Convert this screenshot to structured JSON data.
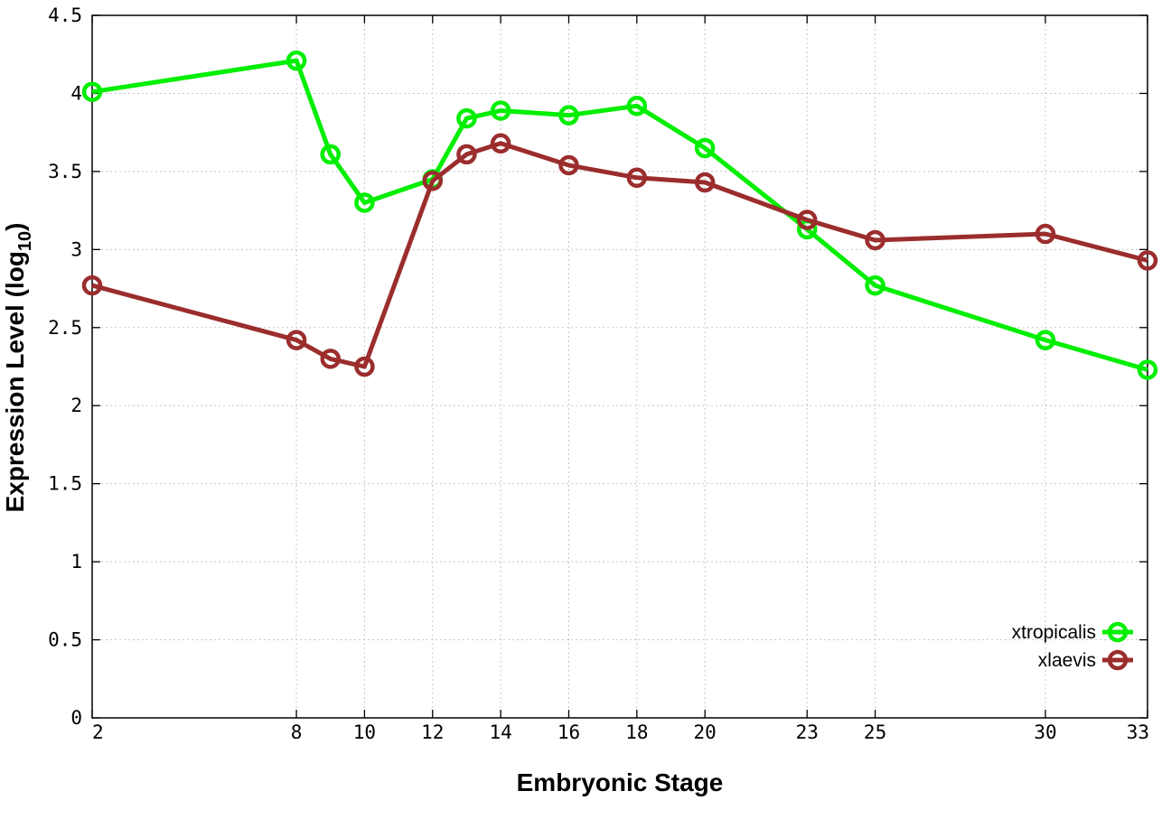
{
  "chart_data": {
    "type": "line",
    "xlabel": "Embryonic Stage",
    "ylabel_main": "Expression Level (log",
    "ylabel_sub": "10",
    "ylabel_close": ")",
    "x_ticks": [
      "2",
      "8",
      "10",
      "12",
      "14",
      "16",
      "18",
      "20",
      "23",
      "25",
      "30",
      "33"
    ],
    "x_tick_values": [
      2,
      8,
      10,
      12,
      14,
      16,
      18,
      20,
      23,
      25,
      30,
      33
    ],
    "y_ticks": [
      "0",
      "0.5",
      "1",
      "1.5",
      "2",
      "2.5",
      "3",
      "3.5",
      "4",
      "4.5"
    ],
    "xlim": [
      2,
      33
    ],
    "ylim": [
      0,
      4.5
    ],
    "grid": true,
    "legend_position": "bottom-right",
    "series": [
      {
        "name": "xtropicalis",
        "color": "#00ee00",
        "x": [
          2,
          8,
          9,
          10,
          12,
          13,
          14,
          16,
          18,
          20,
          23,
          25,
          30,
          33
        ],
        "y": [
          4.01,
          4.21,
          3.61,
          3.3,
          3.45,
          3.84,
          3.89,
          3.86,
          3.92,
          3.65,
          3.13,
          2.77,
          2.42,
          2.23
        ]
      },
      {
        "name": "xlaevis",
        "color": "#9b2d2d",
        "x": [
          2,
          8,
          9,
          10,
          12,
          13,
          14,
          16,
          18,
          20,
          23,
          25,
          30,
          33
        ],
        "y": [
          2.77,
          2.42,
          2.3,
          2.25,
          3.44,
          3.61,
          3.68,
          3.54,
          3.46,
          3.43,
          3.19,
          3.06,
          3.1,
          2.93
        ]
      }
    ]
  }
}
